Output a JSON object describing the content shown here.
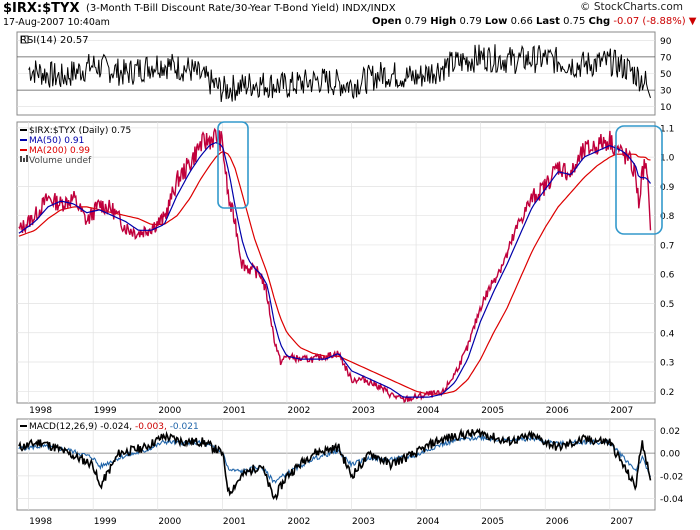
{
  "header": {
    "ticker": "$IRX:$TYX",
    "description": "(3-Month T-Bill Discount Rate/30-Year T-Bond Yield)",
    "exchange": "INDX/INDX",
    "date": "17-Aug-2007 10:40am",
    "quote": {
      "open_label": "Open",
      "open": "0.79",
      "high_label": "High",
      "high": "0.79",
      "low_label": "Low",
      "low": "0.66",
      "last_label": "Last",
      "last": "0.75",
      "chg_label": "Chg",
      "chg": "-0.07",
      "chg_pct": "(-8.88%)"
    },
    "brand": "© StockCharts.com"
  },
  "colors": {
    "price": "#c0003c",
    "ma50": "#0000aa",
    "ma200": "#dd0000",
    "highlight": "#3399cc",
    "macd_signal": "#2266aa"
  },
  "chart_data": [
    {
      "type": "line",
      "panel": "rsi",
      "title": "RSI(14) 20.57",
      "ylim": [
        0,
        100
      ],
      "yticks": [
        "90",
        "70",
        "50",
        "30",
        "10"
      ],
      "x": [
        1998.0,
        1998.5,
        1999.0,
        1999.5,
        2000.0,
        2000.5,
        2001.0,
        2001.5,
        2002.0,
        2002.5,
        2003.0,
        2003.5,
        2004.0,
        2004.5,
        2005.0,
        2005.5,
        2006.0,
        2006.5,
        2007.0,
        2007.3,
        2007.55,
        2007.63
      ],
      "values": [
        55,
        45,
        60,
        50,
        62,
        55,
        30,
        38,
        35,
        42,
        36,
        50,
        45,
        60,
        70,
        66,
        68,
        60,
        64,
        55,
        40,
        20.57
      ]
    },
    {
      "type": "line",
      "panel": "price",
      "legend": [
        "$IRX:$TYX (Daily) 0.75",
        "MA(50) 0.91",
        "MA(200) 0.99",
        "Volume undef"
      ],
      "yticks": [
        "1.1",
        "1.0",
        "0.9",
        "0.8",
        "0.7",
        "0.6",
        "0.5",
        "0.4",
        "0.3",
        "0.2"
      ],
      "ylim": [
        0.16,
        1.12
      ],
      "xlabels": [
        "1998",
        "1999",
        "2000",
        "2001",
        "2002",
        "2003",
        "2004",
        "2005",
        "2006",
        "2007"
      ],
      "x": [
        1997.85,
        1998.1,
        1998.3,
        1998.5,
        1998.7,
        1998.9,
        1999.1,
        1999.3,
        1999.5,
        1999.7,
        1999.9,
        2000.1,
        2000.3,
        2000.5,
        2000.65,
        2000.8,
        2000.9,
        2001.0,
        2001.1,
        2001.2,
        2001.3,
        2001.4,
        2001.5,
        2001.6,
        2001.7,
        2001.8,
        2001.9,
        2002.0,
        2002.2,
        2002.4,
        2002.6,
        2002.8,
        2003.0,
        2003.2,
        2003.4,
        2003.6,
        2003.8,
        2004.0,
        2004.2,
        2004.4,
        2004.6,
        2004.8,
        2005.0,
        2005.2,
        2005.4,
        2005.6,
        2005.8,
        2006.0,
        2006.2,
        2006.4,
        2006.6,
        2006.8,
        2007.0,
        2007.1,
        2007.2,
        2007.3,
        2007.4,
        2007.45,
        2007.5,
        2007.55,
        2007.6,
        2007.63
      ],
      "series": [
        {
          "name": "$IRX:$TYX (Daily)",
          "values": [
            0.75,
            0.8,
            0.86,
            0.84,
            0.86,
            0.78,
            0.84,
            0.82,
            0.76,
            0.74,
            0.76,
            0.79,
            0.92,
            0.98,
            1.04,
            1.06,
            1.07,
            1.05,
            0.85,
            0.78,
            0.64,
            0.62,
            0.61,
            0.6,
            0.52,
            0.38,
            0.3,
            0.32,
            0.31,
            0.31,
            0.32,
            0.33,
            0.24,
            0.24,
            0.22,
            0.19,
            0.17,
            0.18,
            0.19,
            0.19,
            0.26,
            0.35,
            0.49,
            0.58,
            0.66,
            0.78,
            0.86,
            0.9,
            0.97,
            0.94,
            1.02,
            1.04,
            1.06,
            1.03,
            1.01,
            0.99,
            0.94,
            0.84,
            0.94,
            0.98,
            0.88,
            0.75
          ]
        },
        {
          "name": "MA(50)",
          "values": [
            0.74,
            0.78,
            0.83,
            0.85,
            0.84,
            0.81,
            0.82,
            0.8,
            0.78,
            0.75,
            0.75,
            0.77,
            0.87,
            0.95,
            1.0,
            1.04,
            1.05,
            1.04,
            0.95,
            0.83,
            0.72,
            0.65,
            0.62,
            0.6,
            0.56,
            0.44,
            0.36,
            0.32,
            0.31,
            0.31,
            0.31,
            0.33,
            0.27,
            0.25,
            0.23,
            0.21,
            0.18,
            0.18,
            0.18,
            0.19,
            0.23,
            0.31,
            0.44,
            0.54,
            0.63,
            0.73,
            0.83,
            0.89,
            0.95,
            0.94,
            1.0,
            1.02,
            1.04,
            1.03,
            1.02,
            1.0,
            0.97,
            0.93,
            0.93,
            0.93,
            0.92,
            0.91
          ]
        },
        {
          "name": "MA(200)",
          "values": [
            0.73,
            0.75,
            0.79,
            0.82,
            0.83,
            0.83,
            0.82,
            0.81,
            0.8,
            0.79,
            0.77,
            0.77,
            0.8,
            0.86,
            0.92,
            0.97,
            1.0,
            1.02,
            1.01,
            0.96,
            0.88,
            0.8,
            0.72,
            0.66,
            0.6,
            0.52,
            0.45,
            0.4,
            0.35,
            0.33,
            0.32,
            0.32,
            0.3,
            0.28,
            0.26,
            0.24,
            0.22,
            0.2,
            0.19,
            0.19,
            0.2,
            0.24,
            0.31,
            0.4,
            0.48,
            0.58,
            0.68,
            0.76,
            0.83,
            0.88,
            0.93,
            0.97,
            1.0,
            1.01,
            1.01,
            1.01,
            1.01,
            1.0,
            1.0,
            1.0,
            0.99,
            0.99
          ]
        }
      ],
      "annotations": [
        "highlight-2000-2001-peak",
        "highlight-2007-drop"
      ]
    },
    {
      "type": "line",
      "panel": "macd",
      "title": "MACD(12,26,9)",
      "values_text": [
        "-0.024,",
        "-0.003,",
        "-0.021"
      ],
      "ylim": [
        -0.05,
        0.03
      ],
      "yticks": [
        "0.02",
        "0.00",
        "-0.02",
        "-0.04"
      ],
      "xlabels": [
        "1998",
        "1999",
        "2000",
        "2001",
        "2002",
        "2003",
        "2004",
        "2005",
        "2006",
        "2007"
      ],
      "x": [
        1997.85,
        1998.2,
        1998.6,
        1999.0,
        1999.1,
        1999.4,
        1999.8,
        2000.1,
        2000.4,
        2000.7,
        2001.0,
        2001.1,
        2001.3,
        2001.6,
        2001.8,
        2002.0,
        2002.4,
        2002.8,
        2003.0,
        2003.3,
        2003.6,
        2004.0,
        2004.3,
        2004.6,
        2005.0,
        2005.4,
        2005.8,
        2006.2,
        2006.6,
        2007.0,
        2007.2,
        2007.4,
        2007.5,
        2007.63
      ],
      "series": [
        {
          "name": "MACD",
          "values": [
            0.005,
            0.01,
            0.0,
            -0.01,
            -0.03,
            0.0,
            0.005,
            0.015,
            0.01,
            0.01,
            0.0,
            -0.035,
            -0.02,
            -0.01,
            -0.04,
            -0.02,
            0.0,
            0.005,
            -0.02,
            0.0,
            -0.01,
            0.0,
            0.01,
            0.015,
            0.018,
            0.01,
            0.015,
            0.005,
            0.012,
            0.01,
            -0.01,
            -0.03,
            0.012,
            -0.024
          ]
        },
        {
          "name": "Signal",
          "values": [
            0.004,
            0.006,
            0.003,
            -0.004,
            -0.012,
            -0.004,
            0.002,
            0.01,
            0.009,
            0.009,
            0.001,
            -0.015,
            -0.016,
            -0.012,
            -0.025,
            -0.018,
            -0.005,
            0.002,
            -0.01,
            -0.004,
            -0.006,
            -0.002,
            0.006,
            0.011,
            0.014,
            0.011,
            0.013,
            0.008,
            0.01,
            0.009,
            -0.003,
            -0.015,
            -0.004,
            -0.021
          ]
        }
      ]
    }
  ]
}
